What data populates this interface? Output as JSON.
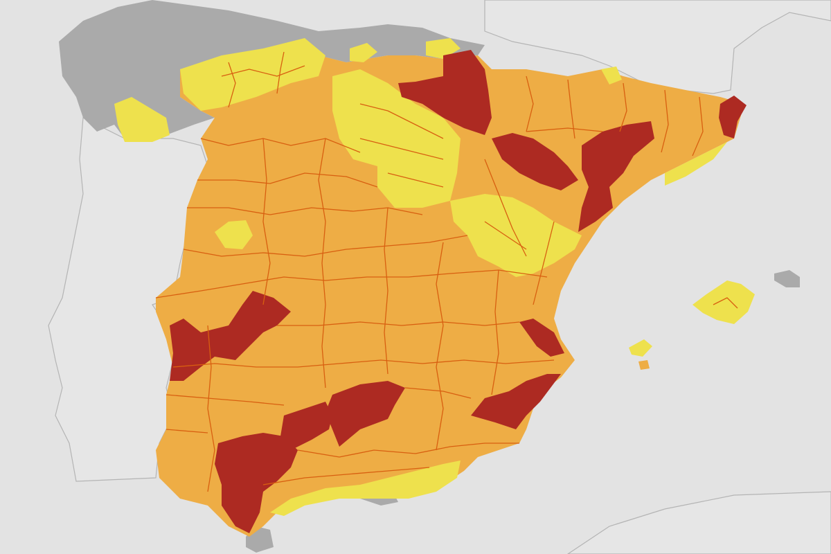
{
  "map": {
    "warning_colors": {
      "red": "#ad2a22",
      "orange": "#eead45",
      "yellow": "#eee14d",
      "grey": "#aaaaaa",
      "sea": "#e3e3e3",
      "neighbor_land": "#e6e6e6"
    }
  }
}
